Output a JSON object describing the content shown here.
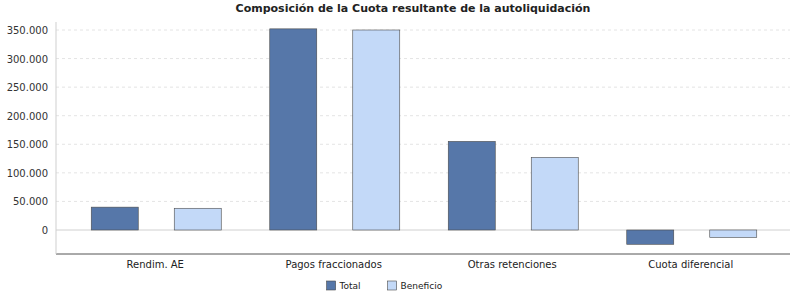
{
  "chart_data": {
    "type": "bar",
    "title": "Composición de la Cuota resultante de la autoliquidación",
    "categories": [
      "Rendim. AE",
      "Pagos fraccionados",
      "Otras retenciones",
      "Cuota diferencial"
    ],
    "series": [
      {
        "name": "Total",
        "color": "#5677a9",
        "values": [
          40000,
          352000,
          155000,
          -25000
        ]
      },
      {
        "name": "Beneficio",
        "color": "#c3d9f8",
        "values": [
          38000,
          350000,
          127000,
          -13000
        ]
      }
    ],
    "ylim": [
      -42000,
      364000
    ],
    "yticks": [
      0,
      {
        "value": 50000,
        "label": "50.000"
      },
      {
        "value": 100000,
        "label": "100.000"
      },
      {
        "value": 150000,
        "label": "150.000"
      },
      {
        "value": 200000,
        "label": "200.000"
      },
      {
        "value": 250000,
        "label": "250.000"
      },
      {
        "value": 300000,
        "label": "300.000"
      },
      {
        "value": 350000,
        "label": "350.000"
      }
    ],
    "grid": true,
    "legend": "bottom"
  }
}
